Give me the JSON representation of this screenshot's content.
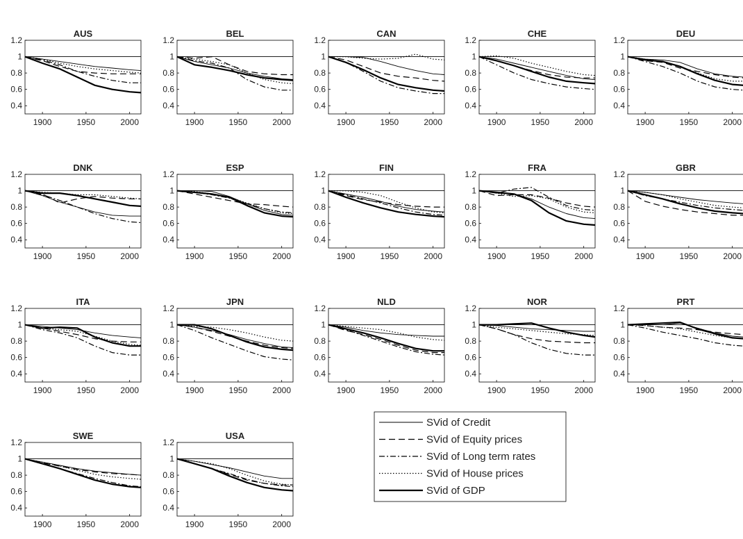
{
  "chart_data": {
    "type": "line",
    "layout": "small-multiples",
    "ylim": [
      0.3,
      1.2
    ],
    "xlim": [
      1880,
      2013
    ],
    "yticks": [
      "1.2",
      "1",
      "0.8",
      "0.6",
      "0.4"
    ],
    "ytick_values": [
      1.2,
      1.0,
      0.8,
      0.6,
      0.4
    ],
    "xticks": [
      "1900",
      "1950",
      "2000"
    ],
    "xtick_values": [
      1900,
      1950,
      2000
    ],
    "reference_line": 1,
    "grid": false,
    "x": [
      1880,
      1900,
      1920,
      1940,
      1960,
      1980,
      2000,
      2013
    ],
    "legend": {
      "placement": "lower-center",
      "entries": [
        "SVid of Credit",
        "SVid of Equity prices",
        "SVid of Long term rates",
        "SVid of House prices",
        "SVid of GDP"
      ]
    },
    "panels": [
      {
        "title": "AUS",
        "series": {
          "credit": [
            1,
            0.97,
            0.94,
            0.91,
            0.88,
            0.86,
            0.84,
            0.83
          ],
          "equity": [
            1,
            0.95,
            0.88,
            0.82,
            0.8,
            0.79,
            0.79,
            0.79
          ],
          "long_rates": [
            1,
            0.96,
            0.9,
            0.82,
            0.76,
            0.71,
            0.68,
            0.68
          ],
          "house": [
            1,
            0.97,
            0.92,
            0.88,
            0.85,
            0.83,
            0.81,
            0.8
          ],
          "gdp": [
            1,
            0.92,
            0.85,
            0.75,
            0.65,
            0.6,
            0.57,
            0.56
          ]
        }
      },
      {
        "title": "BEL",
        "series": {
          "credit": [
            1,
            0.94,
            0.9,
            0.86,
            0.8,
            0.76,
            0.73,
            0.72
          ],
          "equity": [
            1,
            0.98,
            1.0,
            0.9,
            0.82,
            0.79,
            0.78,
            0.78
          ],
          "long_rates": [
            1,
            0.95,
            0.92,
            0.86,
            0.72,
            0.63,
            0.59,
            0.59
          ],
          "house": [
            1,
            0.97,
            0.94,
            0.9,
            0.8,
            0.72,
            0.68,
            0.67
          ],
          "gdp": [
            1,
            0.9,
            0.87,
            0.83,
            0.78,
            0.74,
            0.72,
            0.71
          ]
        }
      },
      {
        "title": "CAN",
        "series": {
          "credit": [
            1,
            1.0,
            0.99,
            0.94,
            0.88,
            0.83,
            0.79,
            0.78
          ],
          "equity": [
            1,
            0.96,
            0.88,
            0.8,
            0.76,
            0.74,
            0.71,
            0.7
          ],
          "long_rates": [
            1,
            0.93,
            0.82,
            0.7,
            0.62,
            0.58,
            0.55,
            0.55
          ],
          "house": [
            1,
            1.0,
            0.98,
            0.97,
            0.98,
            1.03,
            0.97,
            0.96
          ],
          "gdp": [
            1,
            0.93,
            0.84,
            0.74,
            0.66,
            0.62,
            0.59,
            0.58
          ]
        }
      },
      {
        "title": "CHE",
        "series": {
          "credit": [
            1,
            0.97,
            0.92,
            0.87,
            0.82,
            0.77,
            0.73,
            0.72
          ],
          "equity": [
            1,
            0.95,
            0.89,
            0.83,
            0.78,
            0.75,
            0.74,
            0.74
          ],
          "long_rates": [
            1,
            0.9,
            0.8,
            0.72,
            0.67,
            0.63,
            0.61,
            0.6
          ],
          "house": [
            1,
            1.01,
            0.98,
            0.92,
            0.87,
            0.82,
            0.78,
            0.77
          ],
          "gdp": [
            1,
            0.95,
            0.89,
            0.82,
            0.75,
            0.7,
            0.68,
            0.67
          ]
        }
      },
      {
        "title": "DEU",
        "series": {
          "credit": [
            1,
            0.97,
            0.96,
            0.93,
            0.85,
            0.79,
            0.76,
            0.75
          ],
          "equity": [
            1,
            0.95,
            0.93,
            0.86,
            0.82,
            0.78,
            0.75,
            0.74
          ],
          "long_rates": [
            1,
            0.94,
            0.88,
            0.8,
            0.7,
            0.63,
            0.6,
            0.59
          ],
          "house": [
            1,
            0.97,
            0.94,
            0.88,
            0.8,
            0.73,
            0.7,
            0.7
          ],
          "gdp": [
            1,
            0.96,
            0.94,
            0.88,
            0.79,
            0.71,
            0.66,
            0.65
          ]
        }
      },
      {
        "title": "DNK",
        "series": {
          "credit": [
            1,
            0.94,
            0.86,
            0.8,
            0.74,
            0.7,
            0.69,
            0.69
          ],
          "equity": [
            1,
            0.96,
            0.85,
            0.9,
            0.93,
            0.91,
            0.9,
            0.9
          ],
          "long_rates": [
            1,
            0.95,
            0.88,
            0.8,
            0.72,
            0.66,
            0.62,
            0.61
          ],
          "house": [
            1,
            0.98,
            0.97,
            0.95,
            0.95,
            0.93,
            0.91,
            0.9
          ],
          "gdp": [
            1,
            0.97,
            0.97,
            0.94,
            0.9,
            0.86,
            0.82,
            0.81
          ]
        }
      },
      {
        "title": "ESP",
        "series": {
          "credit": [
            1,
            1.0,
            0.99,
            0.93,
            0.84,
            0.76,
            0.71,
            0.7
          ],
          "equity": [
            1,
            0.96,
            0.92,
            0.88,
            0.84,
            0.83,
            0.81,
            0.8
          ],
          "long_rates": [
            1,
            0.98,
            0.95,
            0.91,
            0.84,
            0.78,
            0.74,
            0.73
          ],
          "house": [
            1,
            0.99,
            0.96,
            0.92,
            0.85,
            0.78,
            0.73,
            0.72
          ],
          "gdp": [
            1,
            0.98,
            0.96,
            0.92,
            0.82,
            0.73,
            0.69,
            0.68
          ]
        }
      },
      {
        "title": "FIN",
        "series": {
          "credit": [
            1,
            0.96,
            0.92,
            0.87,
            0.81,
            0.77,
            0.75,
            0.74
          ],
          "equity": [
            1,
            0.94,
            0.89,
            0.86,
            0.83,
            0.81,
            0.8,
            0.8
          ],
          "long_rates": [
            1,
            0.95,
            0.9,
            0.85,
            0.79,
            0.74,
            0.71,
            0.7
          ],
          "house": [
            1,
            1.0,
            0.98,
            0.94,
            0.86,
            0.79,
            0.74,
            0.73
          ],
          "gdp": [
            1,
            0.92,
            0.85,
            0.79,
            0.74,
            0.71,
            0.69,
            0.68
          ]
        }
      },
      {
        "title": "FRA",
        "series": {
          "credit": [
            1,
            0.97,
            0.96,
            0.9,
            0.8,
            0.72,
            0.67,
            0.66
          ],
          "equity": [
            1,
            0.94,
            0.95,
            0.95,
            0.91,
            0.85,
            0.81,
            0.8
          ],
          "long_rates": [
            1,
            0.97,
            1.02,
            1.04,
            0.92,
            0.82,
            0.77,
            0.76
          ],
          "house": [
            1,
            0.97,
            0.93,
            0.94,
            0.9,
            0.8,
            0.74,
            0.73
          ],
          "gdp": [
            1,
            0.98,
            0.96,
            0.88,
            0.73,
            0.63,
            0.59,
            0.58
          ]
        }
      },
      {
        "title": "GBR",
        "series": {
          "credit": [
            1,
            0.98,
            0.95,
            0.92,
            0.89,
            0.87,
            0.85,
            0.84
          ],
          "equity": [
            1,
            0.87,
            0.81,
            0.77,
            0.74,
            0.72,
            0.7,
            0.7
          ],
          "long_rates": [
            1,
            0.94,
            0.9,
            0.86,
            0.82,
            0.79,
            0.77,
            0.76
          ],
          "house": [
            1,
            0.98,
            0.95,
            0.9,
            0.86,
            0.82,
            0.8,
            0.79
          ],
          "gdp": [
            1,
            0.95,
            0.9,
            0.84,
            0.79,
            0.75,
            0.73,
            0.72
          ]
        }
      },
      {
        "title": "ITA",
        "series": {
          "credit": [
            1,
            0.98,
            0.96,
            0.94,
            0.9,
            0.87,
            0.85,
            0.84
          ],
          "equity": [
            1,
            0.96,
            0.92,
            0.88,
            0.83,
            0.8,
            0.79,
            0.79
          ],
          "long_rates": [
            1,
            0.94,
            0.9,
            0.84,
            0.74,
            0.66,
            0.63,
            0.63
          ],
          "house": [
            1,
            0.96,
            0.94,
            0.92,
            0.86,
            0.8,
            0.76,
            0.75
          ],
          "gdp": [
            1,
            0.96,
            0.97,
            0.96,
            0.85,
            0.78,
            0.74,
            0.74
          ]
        }
      },
      {
        "title": "JPN",
        "series": {
          "credit": [
            1,
            0.97,
            0.93,
            0.88,
            0.82,
            0.77,
            0.73,
            0.72
          ],
          "equity": [
            1,
            0.97,
            0.92,
            0.86,
            0.8,
            0.75,
            0.72,
            0.71
          ],
          "long_rates": [
            1,
            0.93,
            0.84,
            0.76,
            0.68,
            0.61,
            0.58,
            0.57
          ],
          "house": [
            1,
            0.98,
            0.97,
            0.94,
            0.9,
            0.85,
            0.81,
            0.8
          ],
          "gdp": [
            1,
            1.0,
            0.95,
            0.87,
            0.79,
            0.73,
            0.7,
            0.69
          ]
        }
      },
      {
        "title": "NLD",
        "series": {
          "credit": [
            1,
            0.97,
            0.93,
            0.9,
            0.88,
            0.87,
            0.86,
            0.86
          ],
          "equity": [
            1,
            0.93,
            0.88,
            0.82,
            0.75,
            0.69,
            0.66,
            0.66
          ],
          "long_rates": [
            1,
            0.94,
            0.87,
            0.8,
            0.73,
            0.67,
            0.64,
            0.63
          ],
          "house": [
            1,
            0.98,
            0.96,
            0.94,
            0.9,
            0.85,
            0.82,
            0.81
          ],
          "gdp": [
            1,
            0.95,
            0.9,
            0.84,
            0.77,
            0.71,
            0.68,
            0.68
          ]
        }
      },
      {
        "title": "NOR",
        "series": {
          "credit": [
            1,
            0.99,
            0.97,
            0.95,
            0.94,
            0.93,
            0.92,
            0.92
          ],
          "equity": [
            1,
            0.95,
            0.88,
            0.83,
            0.8,
            0.79,
            0.78,
            0.78
          ],
          "long_rates": [
            1,
            0.95,
            0.88,
            0.78,
            0.7,
            0.65,
            0.63,
            0.63
          ],
          "house": [
            1,
            0.97,
            0.95,
            0.93,
            0.91,
            0.89,
            0.88,
            0.87
          ],
          "gdp": [
            1,
            1.0,
            1.01,
            1.02,
            0.96,
            0.91,
            0.87,
            0.85
          ]
        }
      },
      {
        "title": "PRT",
        "series": {
          "credit": [
            1,
            1.0,
            1.0,
            1.02,
            0.96,
            0.9,
            0.86,
            0.85
          ],
          "equity": [
            1,
            0.99,
            0.97,
            0.96,
            0.94,
            0.91,
            0.89,
            0.88
          ],
          "long_rates": [
            1,
            0.96,
            0.91,
            0.87,
            0.83,
            0.78,
            0.75,
            0.74
          ],
          "house": [
            1,
            0.99,
            0.97,
            0.95,
            0.91,
            0.87,
            0.84,
            0.83
          ],
          "gdp": [
            1,
            1.01,
            1.02,
            1.03,
            0.95,
            0.89,
            0.84,
            0.83
          ]
        }
      },
      {
        "title": "SWE",
        "series": {
          "credit": [
            1,
            0.96,
            0.92,
            0.88,
            0.85,
            0.83,
            0.81,
            0.8
          ],
          "equity": [
            1,
            0.95,
            0.91,
            0.87,
            0.84,
            0.82,
            0.81,
            0.8
          ],
          "long_rates": [
            1,
            0.94,
            0.88,
            0.82,
            0.76,
            0.71,
            0.67,
            0.66
          ],
          "house": [
            1,
            0.96,
            0.91,
            0.86,
            0.81,
            0.78,
            0.76,
            0.75
          ],
          "gdp": [
            1,
            0.94,
            0.88,
            0.81,
            0.74,
            0.69,
            0.66,
            0.65
          ]
        }
      },
      {
        "title": "USA",
        "series": {
          "credit": [
            1,
            0.97,
            0.93,
            0.89,
            0.84,
            0.79,
            0.76,
            0.76
          ],
          "equity": [
            1,
            0.94,
            0.88,
            0.81,
            0.74,
            0.7,
            0.68,
            0.68
          ],
          "long_rates": [
            1,
            0.94,
            0.88,
            0.82,
            0.75,
            0.7,
            0.67,
            0.66
          ],
          "house": [
            1,
            0.97,
            0.94,
            0.88,
            0.8,
            0.73,
            0.69,
            0.68
          ],
          "gdp": [
            1,
            0.94,
            0.88,
            0.79,
            0.71,
            0.65,
            0.62,
            0.61
          ]
        }
      }
    ]
  }
}
